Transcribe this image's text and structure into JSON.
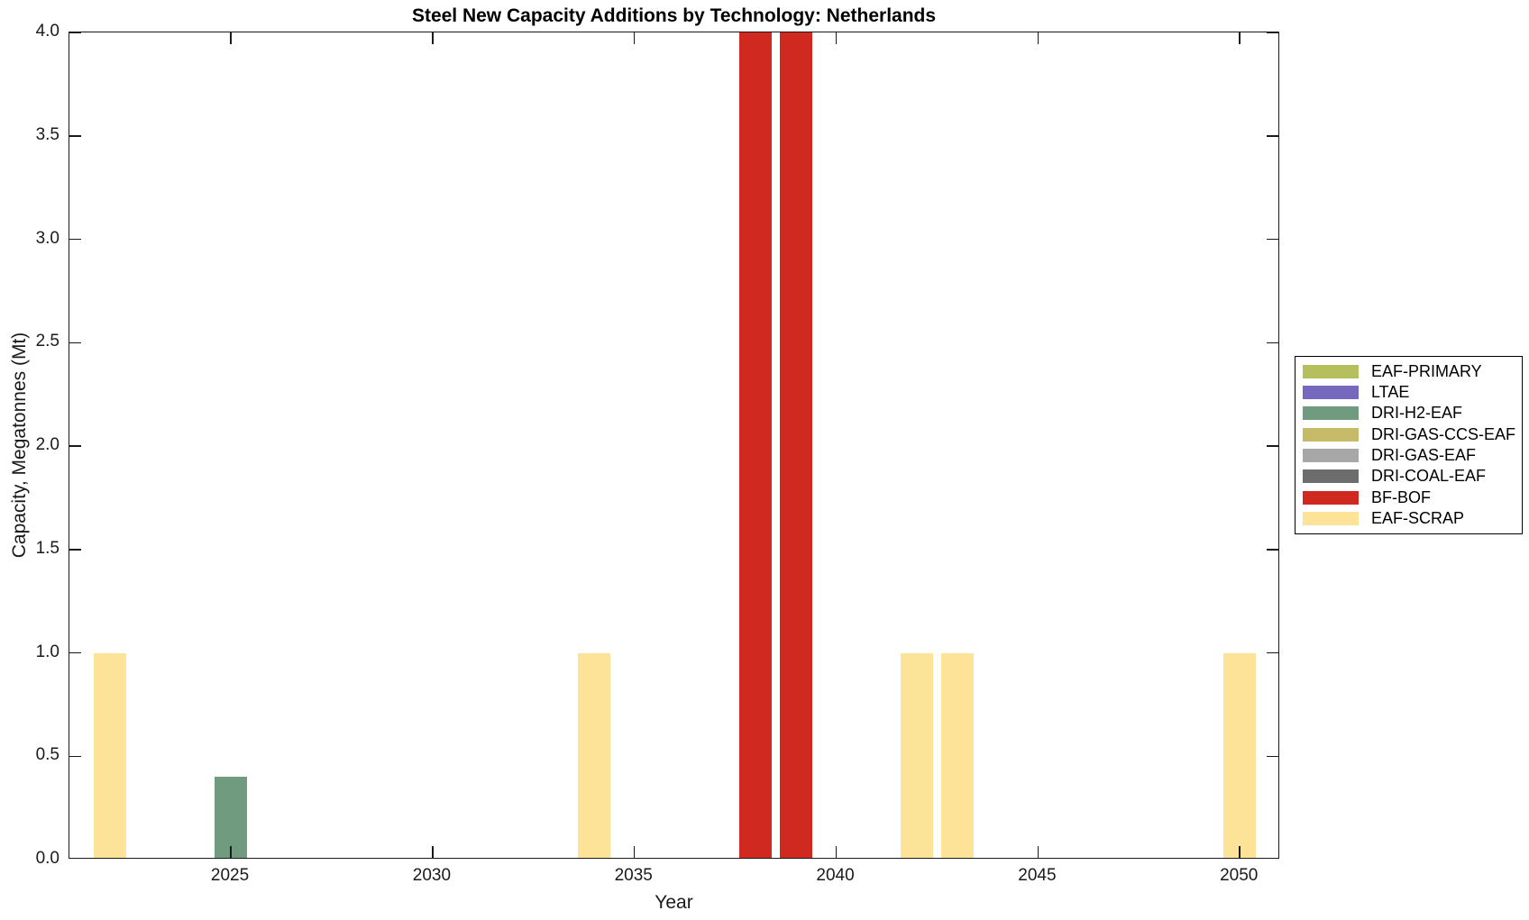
{
  "title": "Steel New Capacity Additions by Technology: Netherlands",
  "chart_data": {
    "type": "bar",
    "title": "Steel New Capacity Additions by Technology: Netherlands",
    "xlabel": "Year",
    "ylabel": "Capacity, Megatonnes (Mt)",
    "xlim": [
      2021,
      2051
    ],
    "ylim": [
      0,
      4
    ],
    "grid": false,
    "legend_position": "outside-right",
    "bar_width_years": 0.8,
    "xticks": [
      {
        "value": 2025,
        "label": "2025"
      },
      {
        "value": 2030,
        "label": "2030"
      },
      {
        "value": 2035,
        "label": "2035"
      },
      {
        "value": 2040,
        "label": "2040"
      },
      {
        "value": 2045,
        "label": "2045"
      },
      {
        "value": 2050,
        "label": "2050"
      }
    ],
    "yticks": [
      {
        "value": 0.0,
        "label": "0.0"
      },
      {
        "value": 0.5,
        "label": "0.5"
      },
      {
        "value": 1.0,
        "label": "1.0"
      },
      {
        "value": 1.5,
        "label": "1.5"
      },
      {
        "value": 2.0,
        "label": "2.0"
      },
      {
        "value": 2.5,
        "label": "2.5"
      },
      {
        "value": 3.0,
        "label": "3.0"
      },
      {
        "value": 3.5,
        "label": "3.5"
      },
      {
        "value": 4.0,
        "label": "4.0"
      }
    ],
    "legend": [
      {
        "label": "EAF-PRIMARY",
        "color": "#b5c05c"
      },
      {
        "label": "LTAE",
        "color": "#7569bd"
      },
      {
        "label": "DRI-H2-EAF",
        "color": "#719b7e"
      },
      {
        "label": "DRI-GAS-CCS-EAF",
        "color": "#c6ba69"
      },
      {
        "label": "DRI-GAS-EAF",
        "color": "#a7a7a7"
      },
      {
        "label": "DRI-COAL-EAF",
        "color": "#6d6d6d"
      },
      {
        "label": "BF-BOF",
        "color": "#d0291f"
      },
      {
        "label": "EAF-SCRAP",
        "color": "#fde398"
      }
    ],
    "bars": [
      {
        "year": 2022,
        "technology": "EAF-SCRAP",
        "value": 1.0,
        "clipped": false
      },
      {
        "year": 2025,
        "technology": "DRI-H2-EAF",
        "value": 0.4,
        "clipped": false
      },
      {
        "year": 2034,
        "technology": "EAF-SCRAP",
        "value": 1.0,
        "clipped": false
      },
      {
        "year": 2038,
        "technology": "BF-BOF",
        "value": 4.0,
        "clipped": true
      },
      {
        "year": 2039,
        "technology": "BF-BOF",
        "value": 4.0,
        "clipped": true
      },
      {
        "year": 2042,
        "technology": "EAF-SCRAP",
        "value": 1.0,
        "clipped": false
      },
      {
        "year": 2043,
        "technology": "EAF-SCRAP",
        "value": 1.0,
        "clipped": false
      },
      {
        "year": 2050,
        "technology": "EAF-SCRAP",
        "value": 1.0,
        "clipped": false
      }
    ],
    "axis_color": "#1a1a1a",
    "background_color": "#ffffff"
  }
}
